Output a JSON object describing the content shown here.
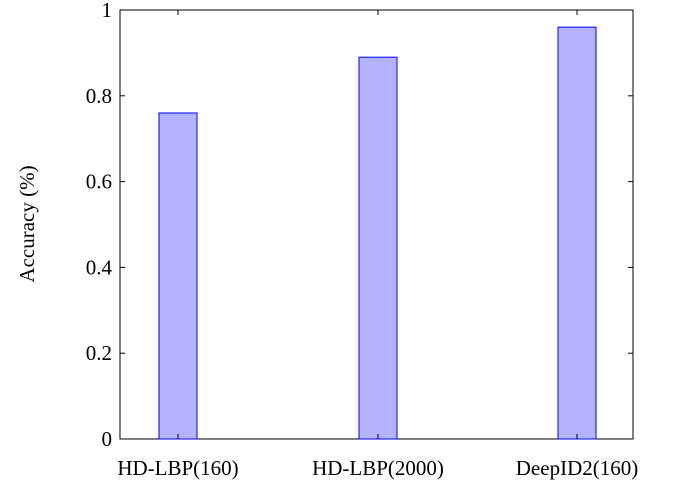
{
  "chart_data": {
    "type": "bar",
    "categories": [
      "HD-LBP(160)",
      "HD-LBP(2000)",
      "DeepID2(160)"
    ],
    "values": [
      0.76,
      0.89,
      0.96
    ],
    "title": "",
    "xlabel": "",
    "ylabel": "Accuracy (%)",
    "ylim": [
      0,
      1
    ],
    "yticks": [
      0,
      0.2,
      0.4,
      0.6,
      0.8,
      1
    ],
    "ytick_labels": [
      "0",
      "0.2",
      "0.4",
      "0.6",
      "0.8",
      "1"
    ],
    "grid": false,
    "legend": "none",
    "colors": {
      "bar_fill": "#b3b3ff",
      "bar_stroke": "#0000ff",
      "axis": "#000000"
    }
  }
}
